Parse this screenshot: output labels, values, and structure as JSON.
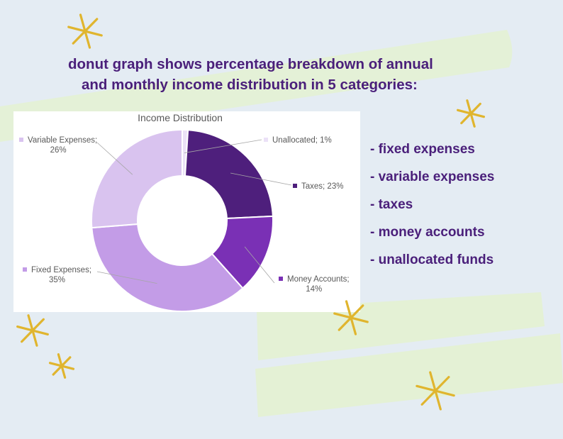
{
  "headline": {
    "line1": "donut graph shows percentage breakdown of annual",
    "line2": "and monthly income distribution in 5 categories:"
  },
  "categories_list": [
    "- fixed expenses",
    "- variable expenses",
    "- taxes",
    "- money accounts",
    "- unallocated funds"
  ],
  "colors": {
    "background": "#e4ecf3",
    "headline_text": "#4a1f7a",
    "brush_green": "#e4f1d5",
    "star_gold": "#e0b52e"
  },
  "chart_data": {
    "type": "pie",
    "donut": true,
    "title": "Income Distribution",
    "start_angle_deg": 0,
    "direction": "clockwise",
    "slices": [
      {
        "name": "Unallocated",
        "value": 1,
        "label": "Unallocated; 1%",
        "color": "#ebe1f7"
      },
      {
        "name": "Taxes",
        "value": 23,
        "label": "Taxes; 23%",
        "color": "#4e1f7c"
      },
      {
        "name": "Money Accounts",
        "value": 14,
        "label_line1": "Money Accounts;",
        "label_line2": "14%",
        "color": "#7a30b5"
      },
      {
        "name": "Fixed Expenses",
        "value": 35,
        "label_line1": "Fixed Expenses;",
        "label_line2": "35%",
        "color": "#c39ce7"
      },
      {
        "name": "Variable Expenses",
        "value": 26,
        "label_line1": "Variable Expenses;",
        "label_line2": "26%",
        "color": "#d9c3ef"
      }
    ],
    "legend": "none"
  }
}
